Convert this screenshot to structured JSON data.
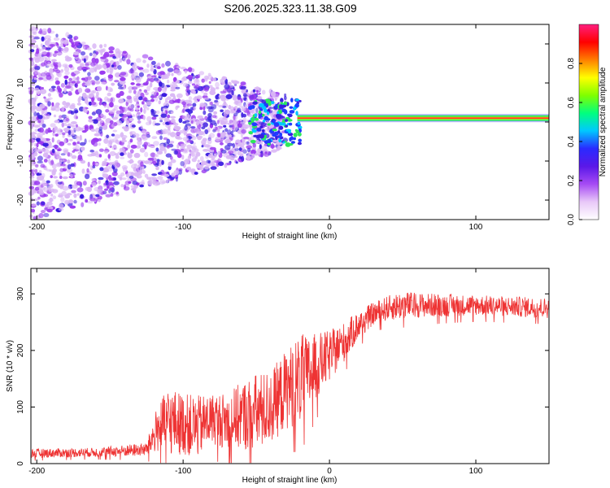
{
  "title": "S206.2025.323.11.38.G09",
  "colors": {
    "trace": "#ee3333",
    "stripe_core": "#ff2a2a",
    "stripe_edge": "#2ee85a",
    "scatter_light": "#d9b6f5",
    "scatter_mid": "#9a3af0",
    "scatter_dark": "#3a1de0"
  },
  "chart_data": [
    {
      "type": "heatmap",
      "xlabel": "Height of straight line (km)",
      "ylabel": "Frequency (Hz)",
      "xlim": [
        -204,
        150
      ],
      "ylim": [
        -25,
        25
      ],
      "xticks": [
        -200,
        -100,
        0,
        100
      ],
      "xtick_labels": [
        "-200",
        "-100",
        "0",
        "100"
      ],
      "yticks": [
        -20,
        -10,
        0,
        10,
        20
      ],
      "ytick_labels": [
        "-20",
        "-10",
        "0",
        "10",
        "20"
      ],
      "colorbar": {
        "label": "Normalized spectral amplitude",
        "range": [
          0,
          1
        ],
        "ticks": [
          0.0,
          0.2,
          0.4,
          0.6,
          0.8
        ],
        "tick_labels": [
          "0.0",
          "0.2",
          "0.4",
          "0.6",
          "0.8"
        ],
        "colormap": [
          "#ffffff",
          "#e8c8f8",
          "#a64bf4",
          "#5a18e8",
          "#2a2aff",
          "#00c8ff",
          "#00ff7f",
          "#7fff00",
          "#ffff00",
          "#ff7f00",
          "#ff0000",
          "#ff1f7f"
        ]
      },
      "stripe": {
        "x_start": -22,
        "x_end": 150,
        "freq": 1.0,
        "value": 0.85
      },
      "scatter_region": {
        "x_start": -204,
        "x_end": -30,
        "value_range": [
          0.05,
          0.3
        ]
      },
      "grid": false
    },
    {
      "type": "line",
      "xlabel": "Height of straight line (km)",
      "ylabel": "SNR (10 * v/v)",
      "xlim": [
        -204,
        150
      ],
      "ylim": [
        0,
        345
      ],
      "xticks": [
        -200,
        -100,
        0,
        100
      ],
      "xtick_labels": [
        "-200",
        "-100",
        "0",
        "100"
      ],
      "yticks": [
        0,
        100,
        200,
        300
      ],
      "ytick_labels": [
        "0",
        "100",
        "200",
        "300"
      ],
      "envelope": {
        "x": [
          -204,
          -160,
          -125,
          -118,
          -110,
          -100,
          -90,
          -80,
          -70,
          -60,
          -50,
          -40,
          -30,
          -20,
          -15,
          -10,
          0,
          10,
          20,
          30,
          40,
          50,
          60,
          80,
          100,
          120,
          150
        ],
        "mean": [
          18,
          20,
          25,
          60,
          75,
          70,
          65,
          80,
          75,
          85,
          90,
          100,
          130,
          150,
          155,
          170,
          190,
          215,
          245,
          265,
          275,
          280,
          280,
          280,
          280,
          278,
          275
        ],
        "spread": [
          8,
          8,
          12,
          40,
          60,
          55,
          55,
          45,
          50,
          60,
          70,
          65,
          70,
          80,
          70,
          60,
          45,
          35,
          25,
          20,
          22,
          25,
          22,
          20,
          18,
          18,
          18
        ]
      },
      "grid": false
    }
  ]
}
